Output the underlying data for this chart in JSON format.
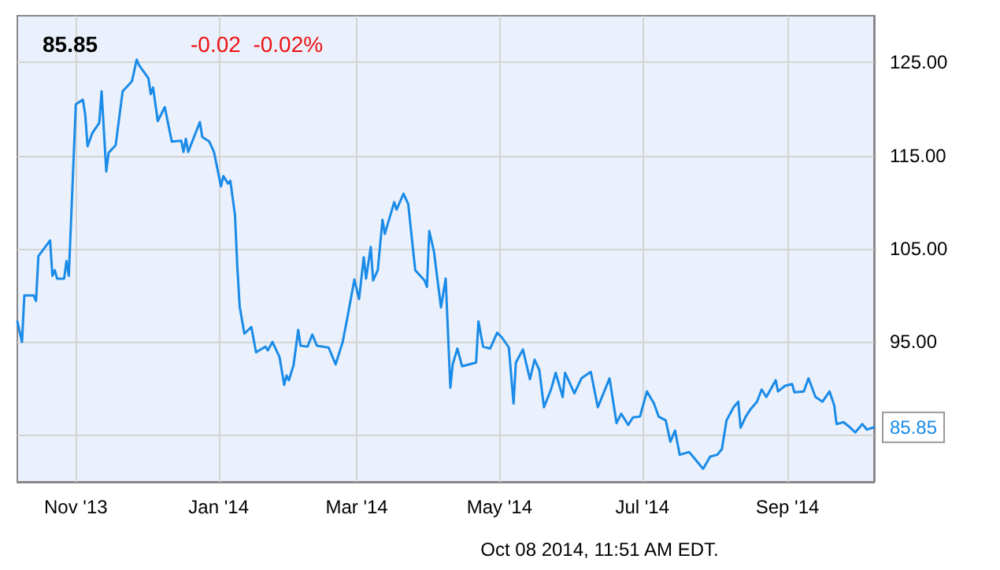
{
  "chart_data": {
    "type": "line",
    "title": "85.85",
    "subtitle": "-0.02  -0.02%",
    "annotations": [
      {
        "text": "85.85",
        "x": "2014-10-08",
        "y": 85.85
      },
      "Oct 08 2014, 11:51 AM EDT."
    ],
    "x": [
      "2013-10-07",
      "2013-10-09",
      "2013-10-10",
      "2013-10-14",
      "2013-10-15",
      "2013-10-16",
      "2013-10-21",
      "2013-10-22",
      "2013-10-23",
      "2013-10-24",
      "2013-10-27",
      "2013-10-28",
      "2013-10-29",
      "2013-11-01",
      "2013-11-04",
      "2013-11-05",
      "2013-11-06",
      "2013-11-08",
      "2013-11-11",
      "2013-11-12",
      "2013-11-14",
      "2013-11-15",
      "2013-11-18",
      "2013-11-21",
      "2013-11-24",
      "2013-11-25",
      "2013-11-27",
      "2013-11-28",
      "2013-12-02",
      "2013-12-03",
      "2013-12-04",
      "2013-12-06",
      "2013-12-09",
      "2013-12-12",
      "2013-12-16",
      "2013-12-17",
      "2013-12-18",
      "2013-12-19",
      "2013-12-24",
      "2013-12-25",
      "2013-12-28",
      "2013-12-30",
      "2014-01-02",
      "2014-01-03",
      "2014-01-05",
      "2014-01-06",
      "2014-01-08",
      "2014-01-09",
      "2014-01-10",
      "2014-01-12",
      "2014-01-15",
      "2014-01-17",
      "2014-01-21",
      "2014-01-22",
      "2014-01-24",
      "2014-01-27",
      "2014-01-29",
      "2014-01-30",
      "2014-01-31",
      "2014-02-02",
      "2014-02-04",
      "2014-02-05",
      "2014-02-08",
      "2014-02-10",
      "2014-02-12",
      "2014-02-17",
      "2014-02-20",
      "2014-02-23",
      "2014-02-25",
      "2014-02-28",
      "2014-03-02",
      "2014-03-04",
      "2014-03-05",
      "2014-03-07",
      "2014-03-08",
      "2014-03-10",
      "2014-03-12",
      "2014-03-13",
      "2014-03-17",
      "2014-03-18",
      "2014-03-21",
      "2014-03-23",
      "2014-03-26",
      "2014-03-30",
      "2014-03-31",
      "2014-04-01",
      "2014-04-03",
      "2014-04-06",
      "2014-04-08",
      "2014-04-10",
      "2014-04-11",
      "2014-04-13",
      "2014-04-15",
      "2014-04-21",
      "2014-04-22",
      "2014-04-24",
      "2014-04-27",
      "2014-04-30",
      "2014-05-02",
      "2014-05-05",
      "2014-05-07",
      "2014-05-08",
      "2014-05-11",
      "2014-05-14",
      "2014-05-16",
      "2014-05-18",
      "2014-05-20",
      "2014-05-23",
      "2014-05-25",
      "2014-05-28",
      "2014-05-29",
      "2014-06-02",
      "2014-06-05",
      "2014-06-09",
      "2014-06-12",
      "2014-06-17",
      "2014-06-20",
      "2014-06-22",
      "2014-06-25",
      "2014-06-27",
      "2014-06-30",
      "2014-07-03",
      "2014-07-06",
      "2014-07-08",
      "2014-07-11",
      "2014-07-13",
      "2014-07-15",
      "2014-07-17",
      "2014-07-21",
      "2014-07-24",
      "2014-07-27",
      "2014-07-30",
      "2014-08-02",
      "2014-08-04",
      "2014-08-06",
      "2014-08-09",
      "2014-08-11",
      "2014-08-12",
      "2014-08-14",
      "2014-08-16",
      "2014-08-19",
      "2014-08-21",
      "2014-08-23",
      "2014-08-27",
      "2014-08-28",
      "2014-08-31",
      "2014-09-03",
      "2014-09-04",
      "2014-09-08",
      "2014-09-10",
      "2014-09-13",
      "2014-09-16",
      "2014-09-19",
      "2014-09-21",
      "2014-09-22",
      "2014-09-25",
      "2014-09-27",
      "2014-09-30",
      "2014-10-03",
      "2014-10-05",
      "2014-10-08"
    ],
    "series": [
      {
        "color": "#1a8be8",
        "values": [
          97.2,
          95.0,
          100.0,
          100.0,
          99.4,
          104.2,
          105.9,
          102.1,
          102.7,
          101.8,
          101.8,
          103.7,
          102.1,
          120.5,
          121.0,
          119.4,
          116.0,
          117.4,
          118.5,
          121.9,
          113.3,
          115.3,
          116.1,
          121.9,
          122.7,
          123.0,
          125.3,
          124.7,
          123.3,
          121.6,
          122.3,
          118.7,
          120.2,
          116.5,
          116.6,
          115.4,
          116.8,
          115.4,
          118.6,
          117.0,
          116.5,
          115.4,
          111.7,
          112.8,
          112.0,
          112.3,
          108.6,
          103.0,
          98.8,
          95.9,
          96.6,
          93.9,
          94.5,
          94.1,
          95.0,
          93.4,
          90.4,
          91.4,
          90.9,
          92.5,
          96.3,
          94.6,
          94.5,
          95.8,
          94.6,
          94.4,
          92.6,
          95.0,
          97.6,
          101.7,
          99.6,
          104.1,
          101.8,
          105.2,
          101.6,
          102.7,
          108.1,
          106.6,
          110.0,
          109.2,
          110.9,
          109.8,
          102.7,
          101.6,
          100.9,
          106.9,
          104.7,
          98.7,
          101.8,
          90.1,
          92.6,
          94.3,
          92.4,
          92.8,
          97.2,
          94.5,
          94.3,
          96.0,
          95.5,
          94.4,
          88.4,
          92.8,
          94.2,
          91.0,
          93.1,
          92.0,
          88.0,
          89.9,
          91.7,
          89.1,
          91.7,
          89.5,
          91.1,
          91.8,
          88.0,
          91.1,
          86.3,
          87.3,
          86.1,
          86.9,
          87.0,
          89.7,
          88.4,
          87.0,
          86.6,
          84.3,
          85.5,
          82.9,
          83.2,
          82.3,
          81.4,
          82.7,
          82.9,
          83.5,
          86.6,
          88.0,
          88.6,
          85.8,
          86.9,
          87.7,
          88.6,
          89.9,
          89.1,
          90.9,
          89.7,
          90.3,
          90.5,
          89.6,
          89.7,
          91.1,
          89.1,
          88.6,
          89.7,
          88.2,
          86.2,
          86.4,
          86.0,
          85.3,
          86.2,
          85.6,
          85.85
        ]
      }
    ],
    "xlim": [
      "2013-10-07",
      "2014-10-08"
    ],
    "xticks": [
      {
        "value": "2013-11-01",
        "label": "Nov '13"
      },
      {
        "value": "2014-01-01",
        "label": "Jan '14"
      },
      {
        "value": "2014-03-01",
        "label": "Mar '14"
      },
      {
        "value": "2014-05-01",
        "label": "May '14"
      },
      {
        "value": "2014-07-01",
        "label": "Jul '14"
      },
      {
        "value": "2014-09-01",
        "label": "Sep '14"
      }
    ],
    "ylim": [
      80,
      130
    ],
    "yticks": [
      {
        "value": 85,
        "label": null
      },
      {
        "value": 95,
        "label": "95.00"
      },
      {
        "value": 105,
        "label": "105.00"
      },
      {
        "value": 115,
        "label": "115.00"
      },
      {
        "value": 125,
        "label": "125.00"
      }
    ],
    "grid": true,
    "marker": "none",
    "line_style": "solid"
  }
}
